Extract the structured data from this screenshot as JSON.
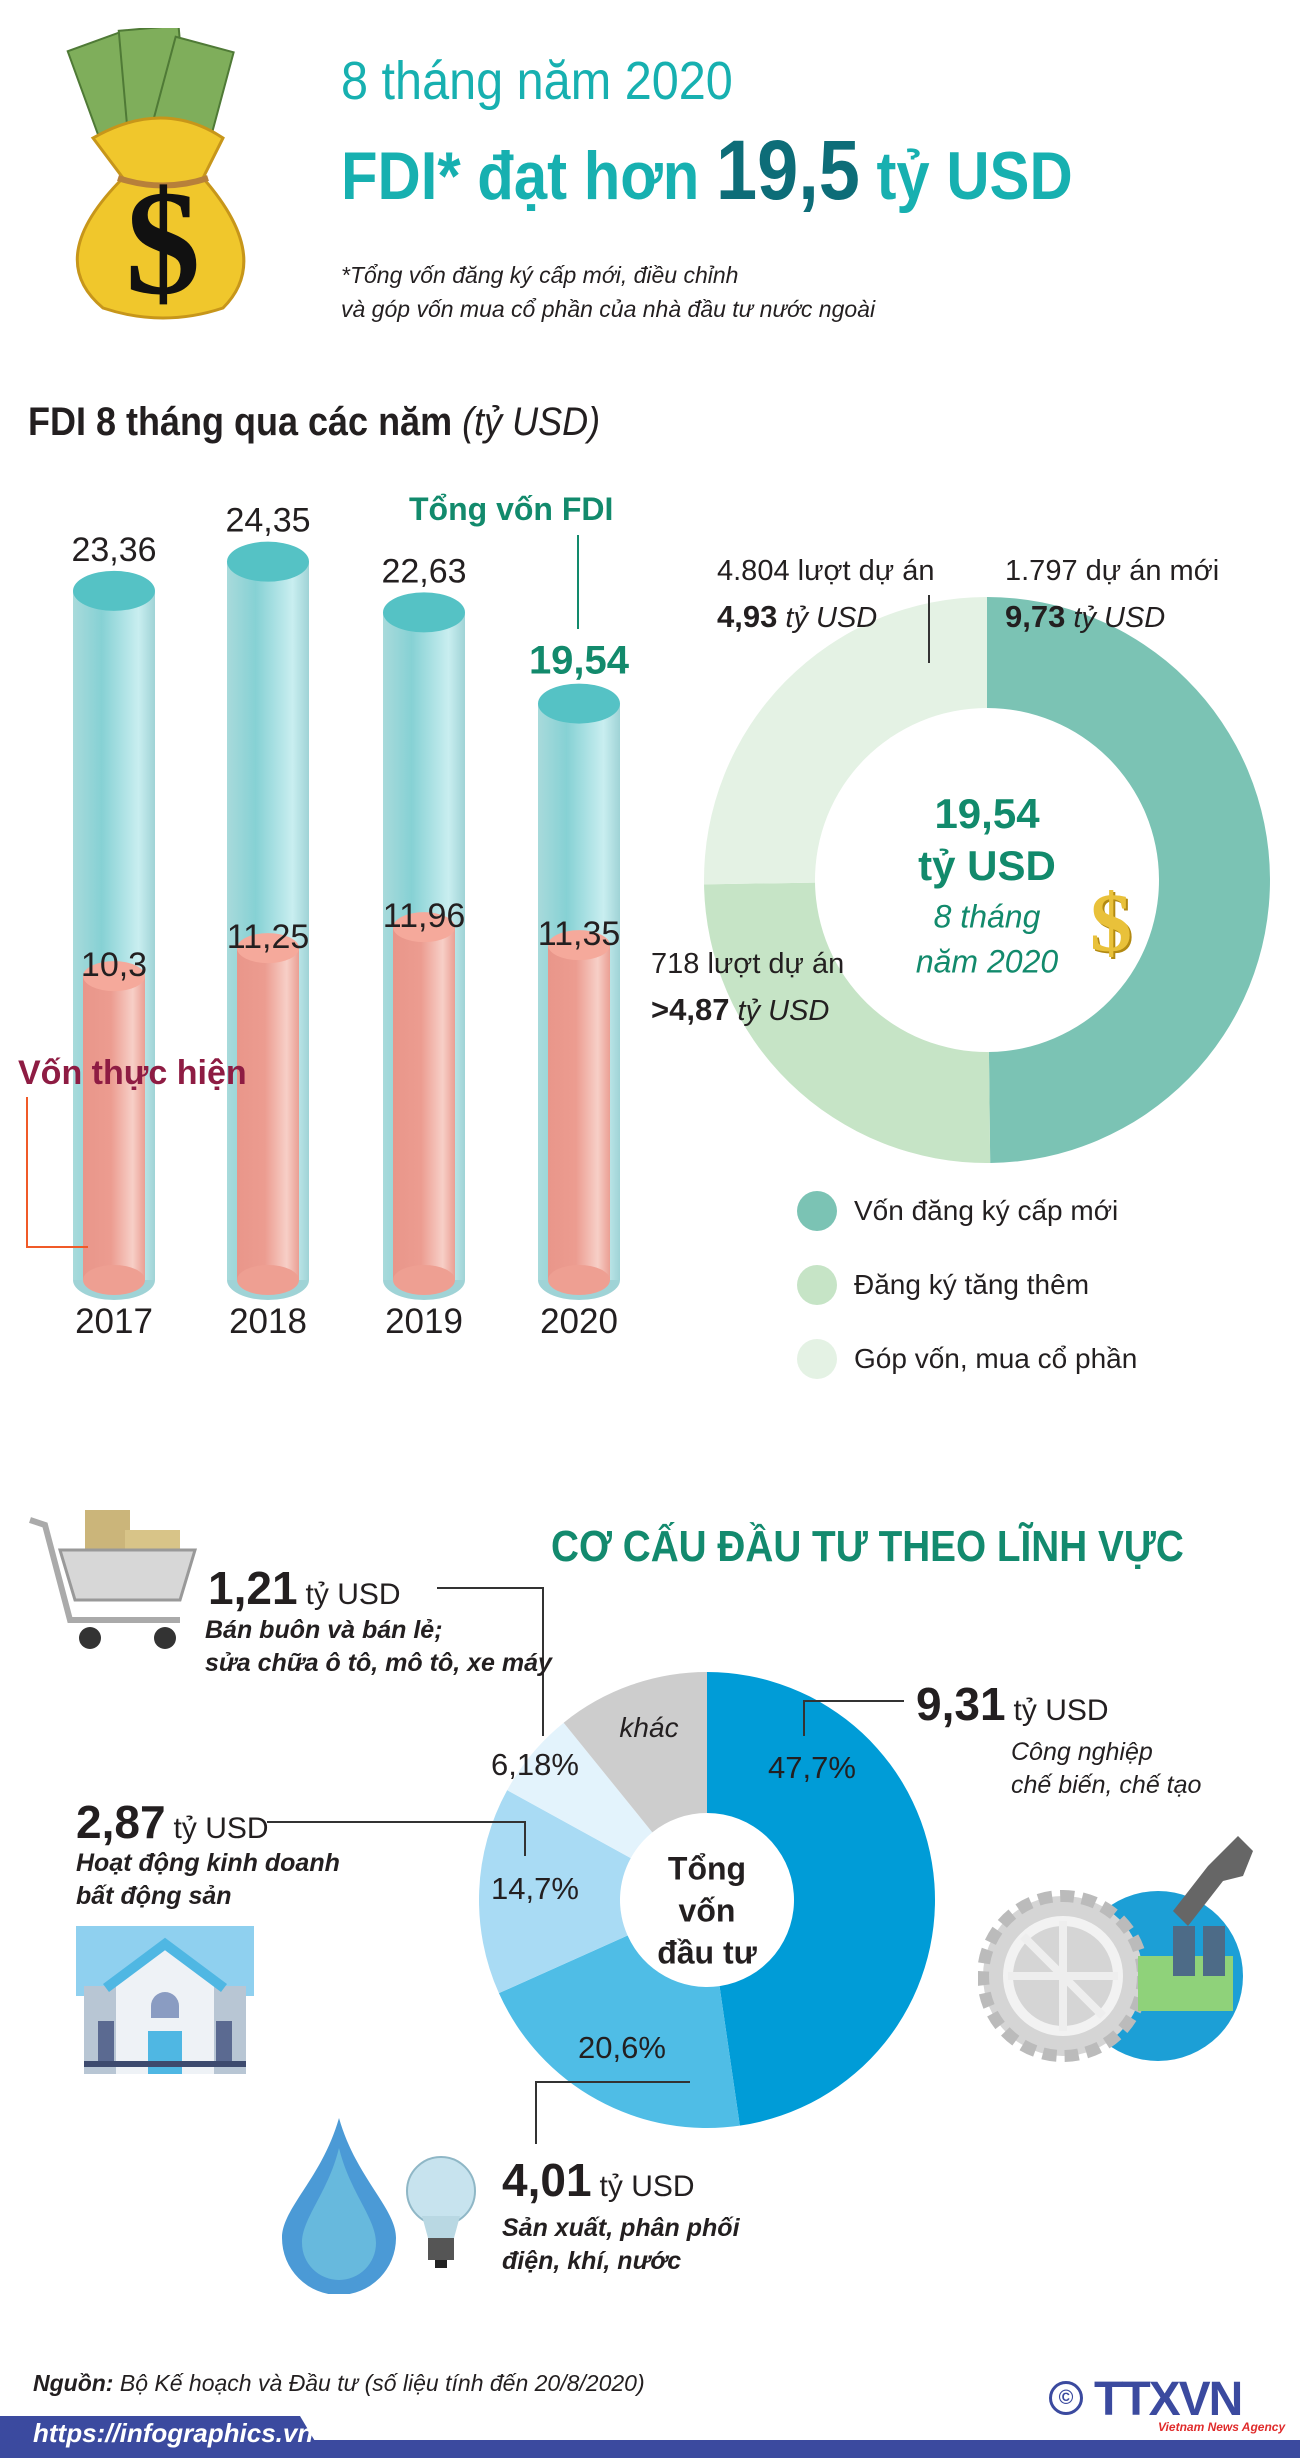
{
  "header": {
    "subtitle": "8 tháng năm 2020",
    "title_prefix": "FDI* đạt hơn ",
    "title_value": "19,5",
    "title_suffix": " tỷ USD",
    "note_line1": "*Tổng vốn đăng ký cấp mới, điều chỉnh",
    "note_line2": "và góp vốn mua cổ phần của nhà đầu tư nước ngoài"
  },
  "section1": {
    "title": "FDI 8 tháng qua các năm ",
    "unit": "(tỷ USD)",
    "total_label": "Tổng vốn FDI",
    "disbursed_label": "Vốn thực hiện"
  },
  "chart_data": [
    {
      "type": "bar",
      "categories": [
        "2017",
        "2018",
        "2019",
        "2020"
      ],
      "series": [
        {
          "name": "Tổng vốn FDI",
          "values": [
            23.36,
            24.35,
            22.63,
            19.54
          ],
          "labels": [
            "23,36",
            "24,35",
            "22,63",
            "19,54"
          ],
          "color": "#8fd3d6"
        },
        {
          "name": "Vốn thực hiện",
          "values": [
            10.3,
            11.25,
            11.96,
            11.35
          ],
          "labels": [
            "10,3",
            "11,25",
            "11,96",
            "11,35"
          ],
          "color": "#ee9f92"
        }
      ]
    },
    {
      "type": "pie",
      "center_value": "19,54",
      "center_unit": "tỷ USD",
      "center_line3": "8 tháng",
      "center_line4": "năm 2020",
      "slices": [
        {
          "name": "Vốn đăng ký cấp mới",
          "value": 9.73,
          "color": "#7bc3b4",
          "count_text": "1.797  dự án mới",
          "value_text": "9,73",
          "unit": " tỷ USD"
        },
        {
          "name": "Đăng ký tăng thêm",
          "value": 4.87,
          "color": "#c6e4c6",
          "count_text": "718 lượt dự án",
          "value_text": ">4,87",
          "unit": " tỷ USD"
        },
        {
          "name": "Góp vốn, mua cổ phần",
          "value": 4.93,
          "color": "#e4f2e4",
          "count_text": "4.804 lượt dự án",
          "value_text": "4,93",
          "unit": " tỷ USD"
        }
      ],
      "legend": [
        "Vốn đăng ký cấp mới",
        "Đăng ký tăng thêm",
        "Góp vốn, mua cổ phần"
      ]
    },
    {
      "type": "pie",
      "title": "CƠ CẤU ĐẦU TƯ THEO LĨNH VỰC",
      "center_text": [
        "Tổng",
        "vốn",
        "đầu tư"
      ],
      "slices": [
        {
          "label": "47,7%",
          "value": 47.7,
          "color": "#009cd7",
          "amount": "9,31",
          "unit": "tỷ USD",
          "desc": [
            "Công nghiệp",
            "chế biến, chế tạo"
          ]
        },
        {
          "label": "20,6%",
          "value": 20.6,
          "color": "#4fbde6",
          "amount": "4,01",
          "unit": "tỷ USD",
          "desc": [
            "Sản xuất, phân phối",
            "điện, khí, nước"
          ]
        },
        {
          "label": "14,7%",
          "value": 14.7,
          "color": "#a9dbf4",
          "amount": "2,87",
          "unit": "tỷ USD",
          "desc": [
            "Hoạt động kinh doanh",
            "bất động sản"
          ]
        },
        {
          "label": "6,18%",
          "value": 6.18,
          "color": "#e3f3fc",
          "amount": "1,21",
          "unit": "tỷ USD",
          "desc": [
            "Bán buôn và bán lẻ;",
            "sửa chữa ô tô, mô tô, xe máy"
          ]
        },
        {
          "label": "khác",
          "value": 10.82,
          "color": "#cdcdcd"
        }
      ]
    }
  ],
  "footer": {
    "source_label": "Nguồn:",
    "source_text": " Bộ Kế hoạch và Đầu tư (số liệu tính đến 20/8/2020)",
    "url": "https://infographics.vn",
    "logo": "TTXVN",
    "logo_sub": "Vietnam News Agency",
    "band_color": "#3b4a9f"
  }
}
